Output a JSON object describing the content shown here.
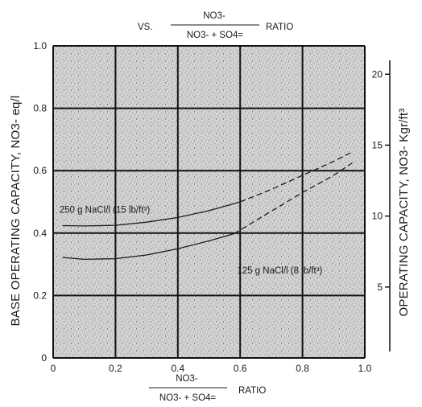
{
  "chart_data": {
    "type": "line",
    "top_caption": {
      "prefix": "VS.",
      "numerator": "NO3-",
      "denominator": "NO3- + SO4=",
      "suffix": "RATIO"
    },
    "x_caption": {
      "numerator": "NO3-",
      "denominator": "NO3- + SO4=",
      "suffix": "RATIO"
    },
    "ylabel_left": "BASE OPERATING CAPACITY, NO3- eq/l",
    "ylabel_right": "OPERATING CAPACITY, NO3- Kgr/ft³",
    "xlim": [
      0,
      1.0
    ],
    "ylim": [
      0,
      1.0
    ],
    "right_axis_lim": [
      0,
      22
    ],
    "x_ticks": [
      "0",
      "0.2",
      "0.4",
      "0.6",
      "0.8",
      "1.0"
    ],
    "y_ticks": [
      "0",
      "0.2",
      "0.4",
      "0.6",
      "0.8",
      "1.0"
    ],
    "right_ticks": [
      "5",
      "10",
      "15",
      "20"
    ],
    "grid": true,
    "series": [
      {
        "name": "250 g NaCl/l (15 lb/ft³)",
        "solid": [
          [
            0.03,
            0.424
          ],
          [
            0.1,
            0.423
          ],
          [
            0.2,
            0.425
          ],
          [
            0.3,
            0.435
          ],
          [
            0.4,
            0.45
          ],
          [
            0.5,
            0.472
          ],
          [
            0.6,
            0.5
          ]
        ],
        "dashed": [
          [
            0.6,
            0.5
          ],
          [
            0.7,
            0.54
          ],
          [
            0.8,
            0.585
          ],
          [
            0.9,
            0.63
          ],
          [
            0.96,
            0.66
          ]
        ]
      },
      {
        "name": "125 g NaCl/l (8 lb/ft³)",
        "solid": [
          [
            0.03,
            0.322
          ],
          [
            0.1,
            0.316
          ],
          [
            0.2,
            0.318
          ],
          [
            0.3,
            0.33
          ],
          [
            0.4,
            0.35
          ],
          [
            0.5,
            0.375
          ],
          [
            0.58,
            0.398
          ]
        ],
        "dashed": [
          [
            0.58,
            0.398
          ],
          [
            0.7,
            0.47
          ],
          [
            0.8,
            0.53
          ],
          [
            0.9,
            0.585
          ],
          [
            0.96,
            0.625
          ]
        ]
      }
    ],
    "annotations": [
      {
        "text": "250 g NaCl/l (15 lb/ft³)",
        "at": [
          0.02,
          0.465
        ]
      },
      {
        "text": "125 g NaCl/l (8 lb/ft³)",
        "at": [
          0.59,
          0.27
        ]
      }
    ]
  }
}
